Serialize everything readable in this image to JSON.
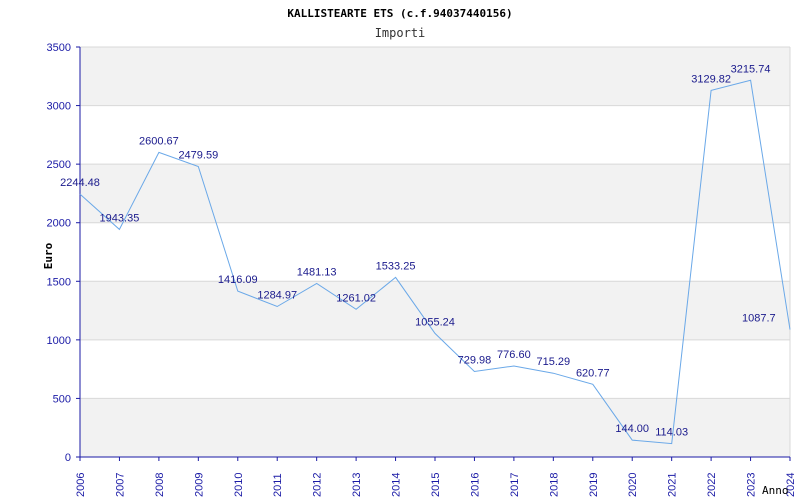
{
  "chart_data": {
    "type": "line",
    "title": "KALLISTEARTE ETS (c.f.94037440156)",
    "subtitle": "Importi",
    "xlabel": "Anno",
    "ylabel": "Euro",
    "ylim": [
      0,
      3500
    ],
    "yticks": [
      0,
      500,
      1000,
      1500,
      2000,
      2500,
      3000,
      3500
    ],
    "grid": true,
    "legend": "none",
    "colors": {
      "line": "#6aa8e8",
      "band": "#f2f2f2",
      "axis": "#1a1aa6",
      "grid": "#d8d8d8"
    },
    "categories": [
      "2006",
      "2007",
      "2008",
      "2009",
      "2010",
      "2011",
      "2012",
      "2013",
      "2014",
      "2015",
      "2016",
      "2017",
      "2018",
      "2019",
      "2020",
      "2021",
      "2022",
      "2023",
      "2024"
    ],
    "values": [
      2244.48,
      1943.35,
      2600.67,
      2479.59,
      1416.09,
      1284.97,
      1481.13,
      1261.02,
      1533.25,
      1055.24,
      729.98,
      776.6,
      715.29,
      620.77,
      144.0,
      114.03,
      3129.82,
      3215.74,
      1087.7
    ],
    "data_labels": [
      "2244.48",
      "1943.35",
      "2600.67",
      "2479.59",
      "1416.09",
      "1284.97",
      "1481.13",
      "1261.02",
      "1533.25",
      "1055.24",
      "729.98",
      "776.60",
      "715.29",
      "620.77",
      "144.00",
      "114.03",
      "3129.82",
      "3215.74",
      "1087.7"
    ]
  }
}
